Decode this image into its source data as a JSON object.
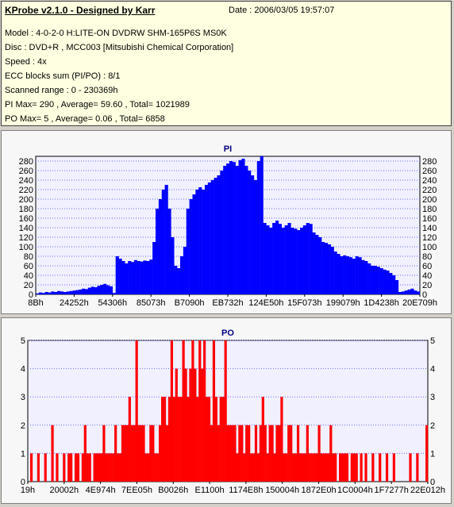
{
  "header": {
    "title": "KProbe v2.1.0 - Designed by Karr",
    "date": "Date : 2006/03/05 19:57:07",
    "model": "Model : 4-0-2-0 H:LITE-ON DVDRW SHM-165P6S MS0K",
    "disc": "Disc : DVD+R , MCC003 [Mitsubishi Chemical Corporation]",
    "speed": "Speed : 4x",
    "ecc": "ECC blocks sum (PI/PO) : 8/1",
    "range": "Scanned range : 0 - 230369h",
    "pi_summary": "PI Max= 290 , Average= 59.60 , Total= 1021989",
    "po_summary": "PO Max= 5 , Average= 0.06 , Total= 6858"
  },
  "colors": {
    "pi": "#0000ff",
    "po": "#ff0000",
    "plot_bg": "#f0f0ff",
    "grid": "#6a6aff"
  },
  "chart_data": [
    {
      "type": "bar",
      "title": "PI",
      "ylim": [
        0,
        290
      ],
      "yticks": [
        0,
        20,
        40,
        60,
        80,
        100,
        120,
        140,
        160,
        180,
        200,
        220,
        240,
        260,
        280
      ],
      "xtick_labels": [
        "8Bh",
        "24252h",
        "54306h",
        "85073h",
        "B7090h",
        "EB732h",
        "124E50h",
        "15F073h",
        "199079h",
        "1D4238h",
        "20E709h"
      ],
      "grid": true,
      "series": [
        {
          "values": [
            2,
            4,
            3,
            5,
            4,
            6,
            5,
            7,
            6,
            5,
            6,
            7,
            8,
            9,
            10,
            12,
            11,
            14,
            16,
            15,
            18,
            20,
            22,
            19,
            17,
            3,
            80,
            75,
            70,
            65,
            70,
            68,
            72,
            70,
            69,
            71,
            70,
            73,
            110,
            180,
            200,
            220,
            230,
            180,
            120,
            60,
            55,
            80,
            100,
            180,
            200,
            210,
            220,
            225,
            220,
            230,
            235,
            240,
            245,
            250,
            260,
            270,
            275,
            280,
            278,
            270,
            282,
            285,
            270,
            260,
            250,
            240,
            280,
            290,
            150,
            145,
            140,
            150,
            155,
            148,
            140,
            145,
            150,
            140,
            138,
            135,
            140,
            145,
            150,
            148,
            130,
            125,
            120,
            110,
            108,
            105,
            100,
            90,
            85,
            80,
            82,
            80,
            78,
            75,
            80,
            78,
            72,
            70,
            65,
            60,
            60,
            58,
            55,
            52,
            50,
            45,
            40,
            30,
            5,
            6,
            8,
            10,
            12,
            8,
            6
          ]
        }
      ]
    },
    {
      "type": "bar",
      "title": "PO",
      "ylim": [
        0,
        5
      ],
      "yticks": [
        0,
        1,
        2,
        3,
        4,
        5
      ],
      "xtick_labels": [
        "19h",
        "20002h",
        "4E974h",
        "7EE05h",
        "B0026h",
        "E1100h",
        "1174E8h",
        "150004h",
        "1872E0h",
        "1C0004h",
        "1F7277h",
        "22E012h"
      ],
      "grid": true,
      "series": [
        {
          "values": [
            0,
            1,
            0,
            0,
            1,
            0,
            0,
            1,
            0,
            0,
            2,
            0,
            1,
            0,
            0,
            1,
            0,
            1,
            1,
            0,
            1,
            1,
            0,
            1,
            2,
            1,
            1,
            0,
            1,
            1,
            1,
            1,
            2,
            1,
            1,
            1,
            1,
            2,
            1,
            1,
            2,
            2,
            2,
            3,
            2,
            2,
            5,
            2,
            2,
            2,
            1,
            1,
            2,
            2,
            1,
            1,
            2,
            3,
            3,
            2,
            3,
            5,
            3,
            4,
            3,
            3,
            5,
            4,
            3,
            4,
            5,
            4,
            3,
            5,
            4,
            5,
            3,
            3,
            2,
            5,
            3,
            2,
            3,
            3,
            5,
            2,
            2,
            2,
            2,
            1,
            2,
            2,
            1,
            2,
            2,
            1,
            1,
            2,
            1,
            2,
            3,
            2,
            1,
            2,
            2,
            1,
            2,
            2,
            3,
            1,
            1,
            2,
            2,
            1,
            1,
            2,
            1,
            1,
            1,
            2,
            1,
            1,
            1,
            1,
            2,
            1,
            1,
            1,
            1,
            2,
            1,
            1,
            0,
            1,
            1,
            1,
            1,
            0,
            1,
            1,
            1,
            0,
            1,
            0,
            1,
            0,
            0,
            1,
            0,
            0,
            1,
            0,
            0,
            1,
            0,
            0,
            1,
            0,
            0,
            0,
            0,
            0,
            0,
            1,
            0,
            0,
            1,
            0,
            0,
            0,
            2
          ]
        }
      ]
    }
  ]
}
